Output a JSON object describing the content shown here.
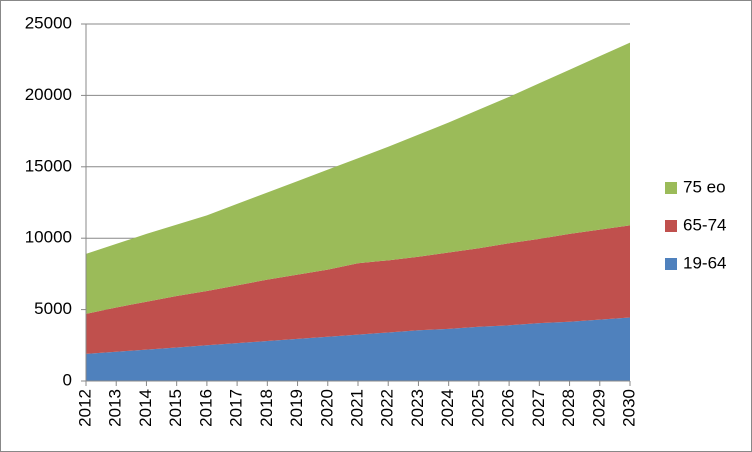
{
  "chart_data": {
    "type": "stacked-area",
    "categories": [
      "2012",
      "2013",
      "2014",
      "2015",
      "2016",
      "2017",
      "2018",
      "2019",
      "2020",
      "2021",
      "2022",
      "2023",
      "2024",
      "2025",
      "2026",
      "2027",
      "2028",
      "2029",
      "2030"
    ],
    "series": [
      {
        "name": "19-64",
        "color": "#4f81bd",
        "values": [
          1900,
          2050,
          2200,
          2350,
          2500,
          2650,
          2800,
          2950,
          3100,
          3250,
          3400,
          3550,
          3650,
          3800,
          3900,
          4050,
          4150,
          4300,
          4450
        ]
      },
      {
        "name": "65-74",
        "color": "#c0504d",
        "values": [
          2800,
          3100,
          3350,
          3600,
          3800,
          4050,
          4300,
          4500,
          4700,
          5000,
          5050,
          5150,
          5350,
          5500,
          5750,
          5900,
          6150,
          6300,
          6450
        ]
      },
      {
        "name": "75 eo",
        "color": "#9bbb59",
        "values": [
          4200,
          4450,
          4750,
          5000,
          5300,
          5700,
          6100,
          6550,
          7000,
          7350,
          7950,
          8550,
          9100,
          9700,
          10250,
          10900,
          11500,
          12150,
          12800
        ]
      }
    ],
    "ylim": [
      0,
      25000
    ],
    "yticks": [
      0,
      5000,
      10000,
      15000,
      20000,
      25000
    ],
    "grid": true
  }
}
